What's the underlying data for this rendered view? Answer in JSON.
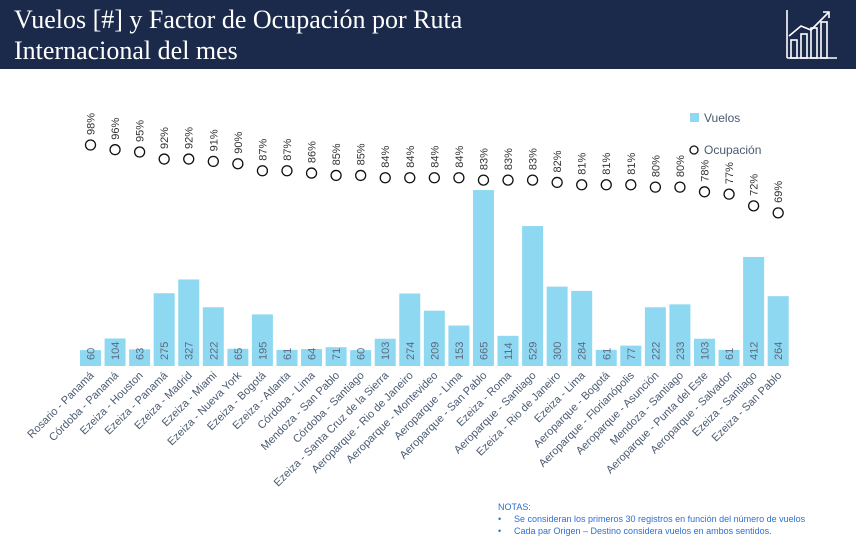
{
  "title": {
    "line1": "Vuelos [#] y Factor de Ocupación por Ruta",
    "line2": "Internacional del mes"
  },
  "logo": {
    "icon": "bar-chart-growth-icon"
  },
  "colors": {
    "header_bg": "#1b2a4a",
    "bar": "#8fd8f2",
    "bar_label": "#5a6a80",
    "axis_text": "#4a5a70",
    "notes_text": "#2e6fd1"
  },
  "chart_data": {
    "type": "bar",
    "legend": {
      "position": "top-right",
      "bars_label": "Vuelos",
      "points_label": "Ocupación"
    },
    "categories": [
      "Rosario - Panamá",
      "Córdoba - Panamá",
      "Ezeiza - Houston",
      "Ezeiza - Panamá",
      "Ezeiza - Madrid",
      "Ezeiza - Miami",
      "Ezeiza - Nueva York",
      "Ezeiza - Bogotá",
      "Ezeiza - Atlanta",
      "Córdoba - Lima",
      "Mendoza - San Pablo",
      "Córdoba - Santiago",
      "Ezeiza - Santa Cruz de la Sierra",
      "Aeroparque - Rio de Janeiro",
      "Aeroparque - Montevideo",
      "Aeroparque - Lima",
      "Aeroparque - San Pablo",
      "Ezeiza - Roma",
      "Aeroparque - Santiago",
      "Ezeiza - Rio de Janeiro",
      "Ezeiza - Lima",
      "Aeroparque - Bogotá",
      "Aeroparque - Florianópolis",
      "Aeroparque - Asunción",
      "Mendoza - Santiago",
      "Aeroparque - Punta del Este",
      "Aeroparque - Salvador",
      "Ezeiza - Santiago",
      "Ezeiza - San Pablo"
    ],
    "series": [
      {
        "name": "Vuelos",
        "values": [
          60,
          104,
          63,
          275,
          327,
          222,
          65,
          195,
          61,
          64,
          71,
          60,
          103,
          274,
          209,
          153,
          665,
          114,
          529,
          300,
          284,
          61,
          77,
          222,
          233,
          103,
          61,
          412,
          264
        ]
      },
      {
        "name": "Ocupación",
        "values": [
          98,
          96,
          95,
          92,
          92,
          91,
          90,
          87,
          87,
          86,
          85,
          85,
          84,
          84,
          84,
          84,
          83,
          83,
          83,
          82,
          81,
          81,
          81,
          80,
          80,
          78,
          77,
          72,
          69
        ]
      }
    ],
    "value_labels": [
      "60",
      "104",
      "63",
      "275",
      "327",
      "222",
      "65",
      "195",
      "61",
      "64",
      "71",
      "60",
      "103",
      "274",
      "209",
      "153",
      "665",
      "114",
      "529",
      "300",
      "284",
      "61",
      "77",
      "222",
      "233",
      "103",
      "61",
      "412",
      "264"
    ],
    "pct_labels": [
      "98%",
      "96%",
      "95%",
      "92%",
      "92%",
      "91%",
      "90%",
      "87%",
      "87%",
      "86%",
      "85%",
      "85%",
      "84%",
      "84%",
      "84%",
      "84%",
      "83%",
      "83%",
      "83%",
      "82%",
      "81%",
      "81%",
      "81%",
      "80%",
      "80%",
      "78%",
      "77%",
      "72%",
      "69%"
    ]
  },
  "notes": {
    "heading": "NOTAS:",
    "items": [
      "Se consideran los primeros 30 registros en función del número de vuelos",
      "Cada par Origen – Destino considera vuelos en ambos sentidos."
    ],
    "bullet": "•"
  }
}
